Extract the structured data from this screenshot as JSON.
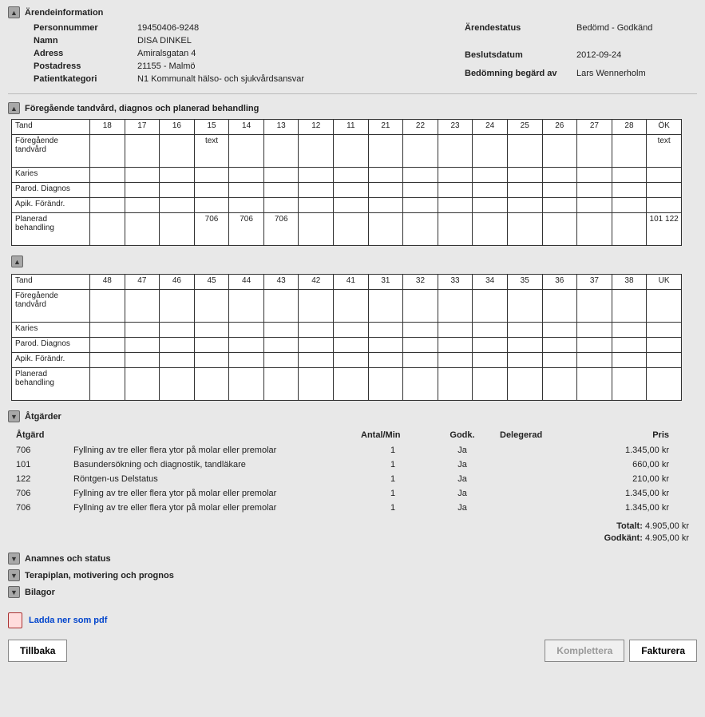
{
  "icons": {
    "up": "▲",
    "down": "▼"
  },
  "arendeinfo": {
    "title": "Ärendeinformation",
    "left": {
      "personnummer_label": "Personnummer",
      "personnummer": "19450406-9248",
      "namn_label": "Namn",
      "namn": "DISA DINKEL",
      "adress_label": "Adress",
      "adress": "Amiralsgatan 4",
      "postadress_label": "Postadress",
      "postadress": "21155 - Malmö",
      "kategori_label": "Patientkategori",
      "kategori": "N1 Kommunalt hälso- och sjukvårdsansvar"
    },
    "right": {
      "status_label": "Ärendestatus",
      "status": "Bedömd - Godkänd",
      "datum_label": "Beslutsdatum",
      "datum": "2012-09-24",
      "bedomning_label": "Bedömning begärd av",
      "bedomning": "Lars Wennerholm"
    }
  },
  "section_prev_title": "Föregående tandvård, diagnos och planerad behandling",
  "tooth_rows": [
    "Föregående tandvård",
    "Karies",
    "Parod. Diagnos",
    "Apik. Förändr.",
    "Planerad behandling"
  ],
  "upper": {
    "label": "Tand",
    "headers": [
      "18",
      "17",
      "16",
      "15",
      "14",
      "13",
      "12",
      "11",
      "21",
      "22",
      "23",
      "24",
      "25",
      "26",
      "27",
      "28",
      "ÖK"
    ],
    "r1": [
      "",
      "",
      "",
      "text",
      "",
      "",
      "",
      "",
      "",
      "",
      "",
      "",
      "",
      "",
      "",
      "",
      "text"
    ],
    "r2": [
      "",
      "",
      "",
      "",
      "",
      "",
      "",
      "",
      "",
      "",
      "",
      "",
      "",
      "",
      "",
      "",
      ""
    ],
    "r3": [
      "",
      "",
      "",
      "",
      "",
      "",
      "",
      "",
      "",
      "",
      "",
      "",
      "",
      "",
      "",
      "",
      ""
    ],
    "r4": [
      "",
      "",
      "",
      "",
      "",
      "",
      "",
      "",
      "",
      "",
      "",
      "",
      "",
      "",
      "",
      "",
      ""
    ],
    "r5": [
      "",
      "",
      "",
      "706",
      "706",
      "706",
      "",
      "",
      "",
      "",
      "",
      "",
      "",
      "",
      "",
      "",
      "101 122"
    ]
  },
  "lower": {
    "label": "Tand",
    "headers": [
      "48",
      "47",
      "46",
      "45",
      "44",
      "43",
      "42",
      "41",
      "31",
      "32",
      "33",
      "34",
      "35",
      "36",
      "37",
      "38",
      "UK"
    ],
    "r1": [
      "",
      "",
      "",
      "",
      "",
      "",
      "",
      "",
      "",
      "",
      "",
      "",
      "",
      "",
      "",
      "",
      ""
    ],
    "r2": [
      "",
      "",
      "",
      "",
      "",
      "",
      "",
      "",
      "",
      "",
      "",
      "",
      "",
      "",
      "",
      "",
      ""
    ],
    "r3": [
      "",
      "",
      "",
      "",
      "",
      "",
      "",
      "",
      "",
      "",
      "",
      "",
      "",
      "",
      "",
      "",
      ""
    ],
    "r4": [
      "",
      "",
      "",
      "",
      "",
      "",
      "",
      "",
      "",
      "",
      "",
      "",
      "",
      "",
      "",
      "",
      ""
    ],
    "r5": [
      "",
      "",
      "",
      "",
      "",
      "",
      "",
      "",
      "",
      "",
      "",
      "",
      "",
      "",
      "",
      "",
      ""
    ]
  },
  "actions": {
    "title": "Åtgärder",
    "cols": [
      "Åtgärd",
      "",
      "Antal/Min",
      "Godk.",
      "Delegerad",
      "Pris"
    ],
    "rows": [
      {
        "code": "706",
        "desc": "Fyllning av tre eller flera ytor på molar eller premolar",
        "qty": "1",
        "godk": "Ja",
        "del": "",
        "pris": "1.345,00 kr"
      },
      {
        "code": "101",
        "desc": "Basundersökning och diagnostik, tandläkare",
        "qty": "1",
        "godk": "Ja",
        "del": "",
        "pris": "660,00 kr"
      },
      {
        "code": "122",
        "desc": "Röntgen-us Delstatus",
        "qty": "1",
        "godk": "Ja",
        "del": "",
        "pris": "210,00 kr"
      },
      {
        "code": "706",
        "desc": "Fyllning av tre eller flera ytor på molar eller premolar",
        "qty": "1",
        "godk": "Ja",
        "del": "",
        "pris": "1.345,00 kr"
      },
      {
        "code": "706",
        "desc": "Fyllning av tre eller flera ytor på molar eller premolar",
        "qty": "1",
        "godk": "Ja",
        "del": "",
        "pris": "1.345,00 kr"
      }
    ],
    "total_label": "Totalt:",
    "total": "4.905,00 kr",
    "godk_label": "Godkänt:",
    "godk_total": "4.905,00 kr"
  },
  "collapsed": {
    "anamnes": "Anamnes och status",
    "terapi": "Terapiplan, motivering och prognos",
    "bilagor": "Bilagor"
  },
  "pdf_label": "Ladda ner som pdf",
  "buttons": {
    "back": "Tillbaka",
    "komplettera": "Komplettera",
    "fakturera": "Fakturera"
  }
}
